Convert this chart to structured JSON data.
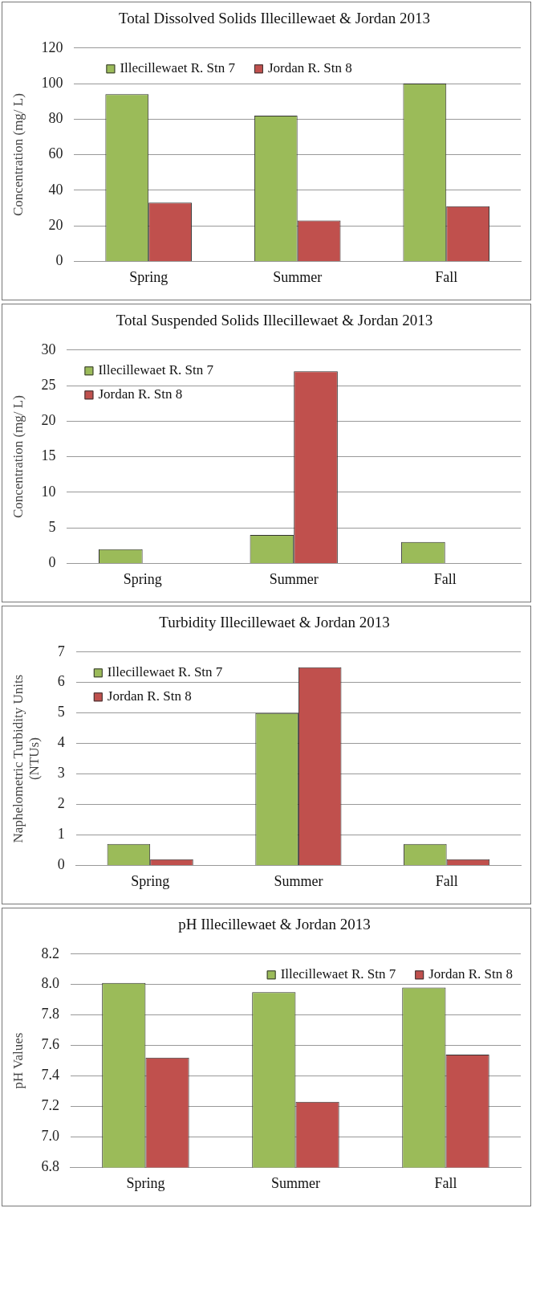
{
  "chart_data": [
    {
      "type": "bar",
      "title": "Total Dissolved Solids Illecillewaet & Jordan 2013",
      "ylabel": "Concentration (mg/ L)",
      "categories": [
        "Spring",
        "Summer",
        "Fall"
      ],
      "series": [
        {
          "name": "Illecillewaet R. Stn 7",
          "color": "#9bbb59",
          "values": [
            94,
            82,
            100
          ]
        },
        {
          "name": "Jordan R. Stn 8",
          "color": "#c0504d",
          "values": [
            33,
            23,
            31
          ]
        }
      ],
      "ylim": [
        0,
        120
      ],
      "yticks": [
        0,
        20,
        40,
        60,
        80,
        100,
        120
      ],
      "grid": "y",
      "legend": "top"
    },
    {
      "type": "bar",
      "title": "Total Suspended Solids Illecillewaet & Jordan 2013",
      "ylabel": "Concentration (mg/ L)",
      "categories": [
        "Spring",
        "Summer",
        "Fall"
      ],
      "series": [
        {
          "name": "Illecillewaet R. Stn 7",
          "color": "#9bbb59",
          "values": [
            2,
            4,
            3
          ]
        },
        {
          "name": "Jordan R. Stn 8",
          "color": "#c0504d",
          "values": [
            0,
            27,
            0
          ]
        }
      ],
      "ylim": [
        0,
        30
      ],
      "yticks": [
        0,
        5,
        10,
        15,
        20,
        25,
        30
      ],
      "grid": "y",
      "legend": "top left"
    },
    {
      "type": "bar",
      "title": "Turbidity Illecillewaet & Jordan 2013",
      "ylabel": "Naphelometric Turbidity Units (NTUs)",
      "categories": [
        "Spring",
        "Summer",
        "Fall"
      ],
      "series": [
        {
          "name": "Illecillewaet R. Stn 7",
          "color": "#9bbb59",
          "values": [
            0.7,
            5,
            0.7
          ]
        },
        {
          "name": "Jordan R. Stn 8",
          "color": "#c0504d",
          "values": [
            0.2,
            6.5,
            0.2
          ]
        }
      ],
      "ylim": [
        0,
        7
      ],
      "yticks": [
        0,
        1,
        2,
        3,
        4,
        5,
        6,
        7
      ],
      "grid": "y",
      "legend": "top left"
    },
    {
      "type": "bar",
      "title": "pH Illecillewaet & Jordan 2013",
      "ylabel": "pH Values",
      "categories": [
        "Spring",
        "Summer",
        "Fall"
      ],
      "series": [
        {
          "name": "Illecillewaet R. Stn 7",
          "color": "#9bbb59",
          "values": [
            8.01,
            7.95,
            7.98
          ]
        },
        {
          "name": "Jordan R. Stn 8",
          "color": "#c0504d",
          "values": [
            7.52,
            7.23,
            7.54
          ]
        }
      ],
      "ylim": [
        6.8,
        8.2
      ],
      "yticks": [
        {
          "value": 6.8,
          "label": "6.8"
        },
        {
          "value": 7,
          "label": "7.0"
        },
        {
          "value": 7.2,
          "label": "7.2"
        },
        {
          "value": 7.4,
          "label": "7.4"
        },
        {
          "value": 7.6,
          "label": "7.6"
        },
        {
          "value": 7.8,
          "label": "7.8"
        },
        {
          "value": 8,
          "label": "8.0"
        },
        {
          "value": 8.2,
          "label": "8.2"
        }
      ],
      "grid": "y",
      "legend": "top right"
    }
  ]
}
